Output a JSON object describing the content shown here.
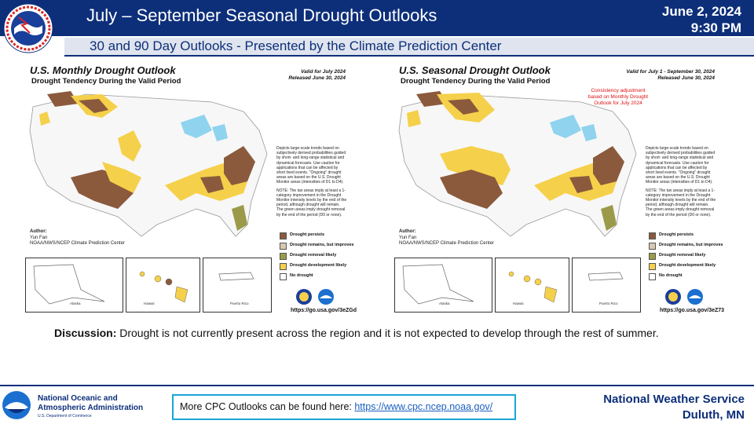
{
  "header": {
    "title": "July – September Seasonal Drought Outlooks",
    "date_line1": "June 2, 2024",
    "date_line2": "9:30 PM",
    "logo_text": "NATIONAL WEATHER SERVICE",
    "subtitle": "30 and 90 Day Outlooks - Presented by the Climate Prediction Center"
  },
  "monthly": {
    "title": "U.S. Monthly Drought Outlook",
    "subtitle": "Drought Tendency During the Valid Period",
    "valid": "Valid for July 2024",
    "released": "Released June 30, 2024",
    "url": "https://go.usa.gov/3eZGd"
  },
  "seasonal": {
    "title": "U.S. Seasonal Drought Outlook",
    "subtitle": "Drought Tendency During the Valid Period",
    "valid": "Valid for July 1 - September 30, 2024",
    "released": "Released June 30, 2024",
    "consistency": "Consistency adjustment based on Monthly Drought Outlook for July 2024",
    "url": "https://go.usa.gov/3eZ73"
  },
  "map_common": {
    "notes_1": "Depicts large-scale trends based on subjectively derived probabilities guided by short- and long-range statistical and dynamical forecasts. Use caution for applications that can be affected by short lived events. \"Ongoing\" drought areas are based on the U.S. Drought Monitor areas (intensities of D1 to D4).",
    "notes_2": "NOTE: The tan areas imply at least a 1-category improvement in the Drought Monitor intensity levels by the end of the period, although drought will remain. The green areas imply drought removal by the end of the period (D0 or none).",
    "author_label": "Author:",
    "author_name": "Yun Fan",
    "author_org": "NOAA/NWS/NCEP Climate Prediction Center",
    "legend": [
      {
        "label": "Drought persists",
        "color": "#8b5a3c"
      },
      {
        "label": "Drought remains, but improves",
        "color": "#d8c8b0"
      },
      {
        "label": "Drought removal likely",
        "color": "#9a9a4a"
      },
      {
        "label": "Drought development likely",
        "color": "#f5d04a"
      },
      {
        "label": "No drought",
        "color": "#ffffff"
      }
    ],
    "inset_alaska": "Alaska",
    "inset_hawaii": "Hawaii",
    "inset_pr": "Puerto Rico"
  },
  "discussion": {
    "label": "Discussion:",
    "text": " Drought is not currently present across the region and it is not expected to develop through the rest of summer."
  },
  "footer": {
    "noaa_line1": "National Oceanic and",
    "noaa_line2": "Atmospheric Administration",
    "noaa_dept": "U.S. Department of Commerce",
    "cpc_text": "More CPC Outlooks can be found here: ",
    "cpc_link": "https://www.cpc.ncep.noaa.gov/",
    "nws_line1": "National Weather Service",
    "nws_line2": "Duluth, MN"
  },
  "colors": {
    "header_bg": "#0d2f7a",
    "persist": "#8b5a3c",
    "develop": "#f5d04a",
    "removal": "#9a9a4a",
    "lakes": "#8fd3ee",
    "link_border": "#1aa6d8"
  }
}
